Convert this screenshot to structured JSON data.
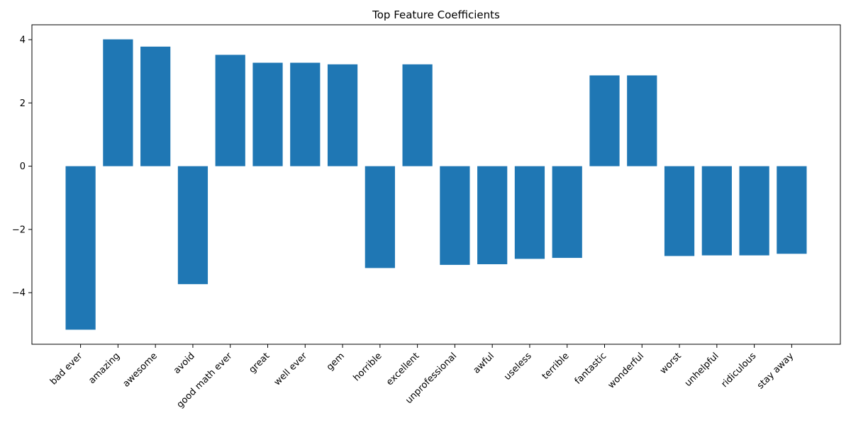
{
  "chart_data": {
    "type": "bar",
    "title": "Top Feature Coefficients",
    "xlabel": "",
    "ylabel": "",
    "categories": [
      "bad ever",
      "amazing",
      "awesome",
      "avoid",
      "good math ever",
      "great",
      "well ever",
      "gem",
      "horrible",
      "excellent",
      "unprofessional",
      "awful",
      "useless",
      "terrible",
      "fantastic",
      "wonderful",
      "worst",
      "unhelpful",
      "ridiculous",
      "stay away"
    ],
    "values": [
      -5.17,
      4.01,
      3.78,
      -3.73,
      3.52,
      3.27,
      3.27,
      3.22,
      -3.22,
      3.22,
      -3.12,
      -3.1,
      -2.93,
      -2.9,
      2.87,
      2.87,
      -2.84,
      -2.82,
      -2.82,
      -2.77
    ],
    "ylim": [
      -5.63,
      4.47
    ],
    "yticks": [
      -4,
      -2,
      0,
      2,
      4
    ],
    "ytick_labels": [
      "−4",
      "−2",
      "0",
      "2",
      "4"
    ],
    "grid": false,
    "bar_color": "#1f77b4"
  }
}
